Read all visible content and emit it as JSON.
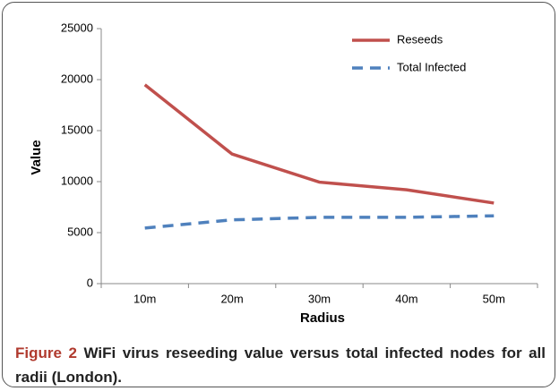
{
  "chart_data": {
    "type": "line",
    "categories": [
      "10m",
      "20m",
      "30m",
      "40m",
      "50m"
    ],
    "series": [
      {
        "name": "Reseeds",
        "color": "#c0504d",
        "dash": false,
        "values": [
          19500,
          12700,
          9950,
          9200,
          7900
        ]
      },
      {
        "name": "Total Infected",
        "color": "#4f81bd",
        "dash": true,
        "values": [
          5450,
          6250,
          6500,
          6500,
          6650
        ]
      }
    ],
    "ylim": [
      0,
      25000
    ],
    "yticks": [
      0,
      5000,
      10000,
      15000,
      20000,
      25000
    ],
    "ylabel": "Value",
    "xlabel": "Radius",
    "legend": "top-right",
    "grid": false,
    "figure_label": "Figure 2",
    "caption": "WiFi virus reseeding value versus total infected nodes for all radii (London)."
  }
}
